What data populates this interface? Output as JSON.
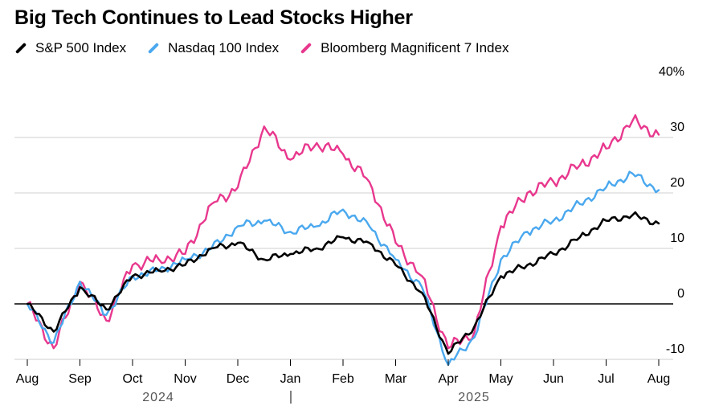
{
  "chart_data": {
    "type": "line",
    "title": "Big Tech Continues to Lead Stocks Higher",
    "xlabel": "",
    "ylabel": "",
    "unit": "% change",
    "ylim": [
      -10,
      40
    ],
    "y_ticks": [
      {
        "value": 40,
        "label": "40%"
      },
      {
        "value": 30,
        "label": "30"
      },
      {
        "value": 20,
        "label": "20"
      },
      {
        "value": 10,
        "label": "10"
      },
      {
        "value": 0,
        "label": "0"
      },
      {
        "value": -10,
        "label": "-10"
      }
    ],
    "x_ticks": [
      "Aug",
      "Sep",
      "Oct",
      "Nov",
      "Dec",
      "Jan",
      "Feb",
      "Mar",
      "Apr",
      "May",
      "Jun",
      "Jul",
      "Aug"
    ],
    "years": [
      "2024",
      "2025"
    ],
    "x": [
      "Aug",
      "mid-Aug",
      "Sep",
      "mid-Sep",
      "Oct",
      "mid-Oct",
      "Nov",
      "mid-Nov",
      "Dec",
      "mid-Dec",
      "Jan",
      "mid-Jan",
      "Feb",
      "mid-Feb",
      "Mar",
      "mid-Mar",
      "Apr",
      "mid-Apr",
      "May",
      "mid-May",
      "Jun",
      "mid-Jun",
      "Jul",
      "mid-Jul",
      "Aug"
    ],
    "series": [
      {
        "name": "S&P 500 Index",
        "color": "#000000",
        "values": [
          0,
          -5,
          3,
          -1,
          5,
          6,
          7,
          10,
          11,
          8,
          9,
          10,
          12,
          11,
          7,
          2,
          -9,
          -4,
          5,
          7,
          9,
          12,
          15,
          16,
          14.5
        ]
      },
      {
        "name": "Nasdaq 100 Index",
        "color": "#4aa8ee",
        "values": [
          0,
          -7,
          4,
          -2,
          5,
          6,
          8,
          10,
          14,
          15,
          13,
          14,
          17,
          14,
          8,
          3,
          -11,
          -6,
          8,
          13,
          15,
          18,
          21,
          23.5,
          20.5
        ]
      },
      {
        "name": "Bloomberg Magnificent 7 Index",
        "color": "#e8388e",
        "values": [
          0,
          -8,
          4,
          -3,
          7,
          8,
          9,
          18,
          21,
          32,
          26,
          29,
          27,
          22,
          11,
          5,
          -8,
          -5,
          14,
          20,
          22,
          25,
          28,
          33,
          30.5
        ]
      }
    ]
  }
}
